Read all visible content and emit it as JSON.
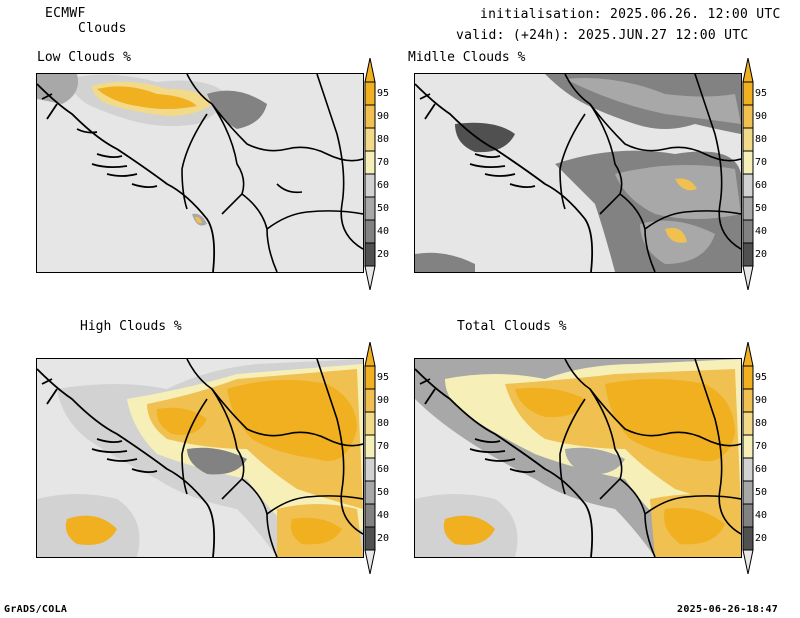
{
  "header": {
    "model": "ECMWF",
    "product": "Clouds",
    "init": "initialisation: 2025.06.26. 12:00 UTC",
    "valid": "valid: (+24h): 2025.JUN.27 12:00 UTC"
  },
  "panels": [
    {
      "title": "Low Clouds %"
    },
    {
      "title": "Midlle Clouds %"
    },
    {
      "title": "High Clouds %"
    },
    {
      "title": "Total Clouds %"
    }
  ],
  "colorbar": {
    "labels": [
      "95",
      "90",
      "80",
      "70",
      "60",
      "50",
      "40",
      "20"
    ],
    "colors": [
      "#f0b020",
      "#f0c050",
      "#f2da88",
      "#f6f0b8",
      "#d2d2d2",
      "#a8a8a8",
      "#828282",
      "#505050"
    ],
    "top_arrow_color": "#f0b020",
    "bottom_arrow_color": "#e8e8e8"
  },
  "footer": {
    "left": "GrADS/COLA",
    "right": "2025-06-26-18:47"
  }
}
